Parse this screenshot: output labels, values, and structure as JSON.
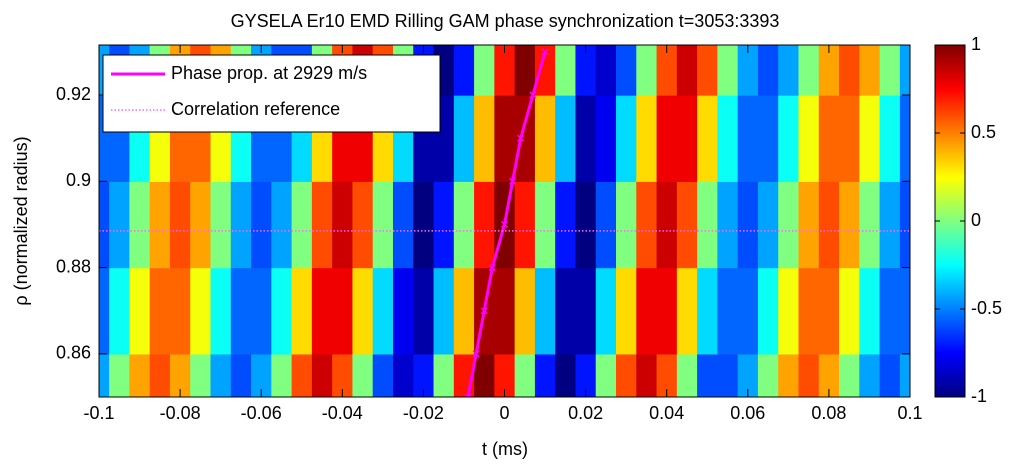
{
  "chart_data": {
    "type": "heatmap",
    "title": "GYSELA Er10 EMD Rilling GAM phase synchronization t=3053:3393",
    "xlabel": "t (ms)",
    "ylabel": "ρ (normalized radius)",
    "colormap": "jet",
    "x": [
      -0.1,
      -0.095,
      -0.09,
      -0.085,
      -0.08,
      -0.075,
      -0.07,
      -0.065,
      -0.06,
      -0.055,
      -0.05,
      -0.045,
      -0.04,
      -0.035,
      -0.03,
      -0.025,
      -0.02,
      -0.015,
      -0.01,
      -0.005,
      0,
      0.005,
      0.01,
      0.015,
      0.02,
      0.025,
      0.03,
      0.035,
      0.04,
      0.045,
      0.05,
      0.055,
      0.06,
      0.065,
      0.07,
      0.075,
      0.08,
      0.085,
      0.09,
      0.095,
      0.1
    ],
    "y": [
      0.85,
      0.87,
      0.89,
      0.91,
      0.93
    ],
    "z": [
      [
        -0.43,
        0,
        0.43,
        0.6,
        0.43,
        0,
        -0.43,
        -0.6,
        -0.43,
        0,
        0.6,
        0.85,
        0.6,
        0,
        -0.6,
        -0.85,
        -0.71,
        0,
        0.71,
        1,
        0.71,
        0,
        -0.71,
        -1,
        -0.71,
        0,
        0.6,
        0.85,
        0.6,
        0,
        -0.6,
        -0.6,
        -0.43,
        0,
        0.43,
        0.6,
        0.43,
        0,
        -0.43,
        -0.6,
        -0.43
      ],
      [
        -0.55,
        -0.23,
        0.23,
        0.55,
        0.55,
        0.23,
        -0.23,
        -0.55,
        -0.55,
        -0.23,
        0.32,
        0.78,
        0.78,
        0.32,
        -0.32,
        -0.78,
        -0.92,
        -0.38,
        0.38,
        0.92,
        0.92,
        0.38,
        -0.38,
        -0.92,
        -0.92,
        -0.32,
        0.32,
        0.78,
        0.78,
        0.32,
        -0.32,
        -0.55,
        -0.55,
        -0.23,
        0.23,
        0.55,
        0.55,
        0.23,
        -0.23,
        -0.55,
        -0.55
      ],
      [
        -0.6,
        -0.43,
        0,
        0.43,
        0.6,
        0.43,
        0,
        -0.43,
        -0.6,
        -0.43,
        0,
        0.6,
        0.85,
        0.6,
        0,
        -0.6,
        -1,
        -0.71,
        0,
        0.71,
        1,
        0.71,
        0,
        -0.71,
        -1,
        -0.6,
        0,
        0.6,
        0.85,
        0.6,
        0,
        -0.43,
        -0.6,
        -0.43,
        0,
        0.43,
        0.6,
        0.43,
        0,
        -0.43,
        -0.6
      ],
      [
        -0.55,
        -0.55,
        -0.23,
        0.23,
        0.55,
        0.55,
        0.23,
        -0.23,
        -0.55,
        -0.55,
        -0.32,
        0.32,
        0.78,
        0.78,
        0.32,
        -0.32,
        -0.92,
        -0.92,
        -0.38,
        0.38,
        0.92,
        0.92,
        0.38,
        -0.38,
        -0.92,
        -0.78,
        -0.32,
        0.32,
        0.78,
        0.78,
        0.32,
        -0.23,
        -0.55,
        -0.55,
        -0.23,
        0.23,
        0.55,
        0.55,
        0.23,
        -0.23,
        -0.55
      ],
      [
        -0.43,
        -0.6,
        -0.43,
        0,
        0.43,
        0.6,
        0.43,
        0,
        -0.43,
        -0.6,
        -0.6,
        0,
        0.6,
        0.85,
        0.6,
        0,
        -0.71,
        -1,
        -0.71,
        0,
        0.71,
        1,
        0.71,
        0,
        -0.71,
        -0.85,
        -0.6,
        0,
        0.6,
        0.85,
        0.6,
        0,
        -0.43,
        -0.6,
        -0.43,
        0,
        0.43,
        0.6,
        0.43,
        0,
        -0.43
      ]
    ],
    "xlim": [
      -0.1,
      0.1
    ],
    "ylim": [
      0.85,
      0.9316
    ],
    "xticks": [
      -0.1,
      -0.08,
      -0.06,
      -0.04,
      -0.02,
      0,
      0.02,
      0.04,
      0.06,
      0.08,
      0.1
    ],
    "yticks": [
      0.86,
      0.88,
      0.9,
      0.92
    ],
    "clim": [
      -1,
      1
    ],
    "cticks": [
      -1,
      -0.5,
      0,
      0.5,
      1
    ],
    "legend": "upper left",
    "lines": [
      {
        "name": "Phase prop. at 2929 m/s",
        "color": "#ff00ff",
        "style": "solid",
        "x": [
          -0.009,
          -0.007,
          -0.005,
          -0.003,
          0,
          0.002,
          0.004,
          0.007,
          0.01
        ],
        "y": [
          0.85,
          0.86,
          0.87,
          0.88,
          0.89,
          0.9,
          0.91,
          0.92,
          0.93
        ]
      },
      {
        "name": "Correlation reference",
        "color": "#ff66ff",
        "style": "dotted",
        "x": [
          -0.1,
          0.1
        ],
        "y": [
          0.8885,
          0.8885
        ]
      }
    ]
  }
}
